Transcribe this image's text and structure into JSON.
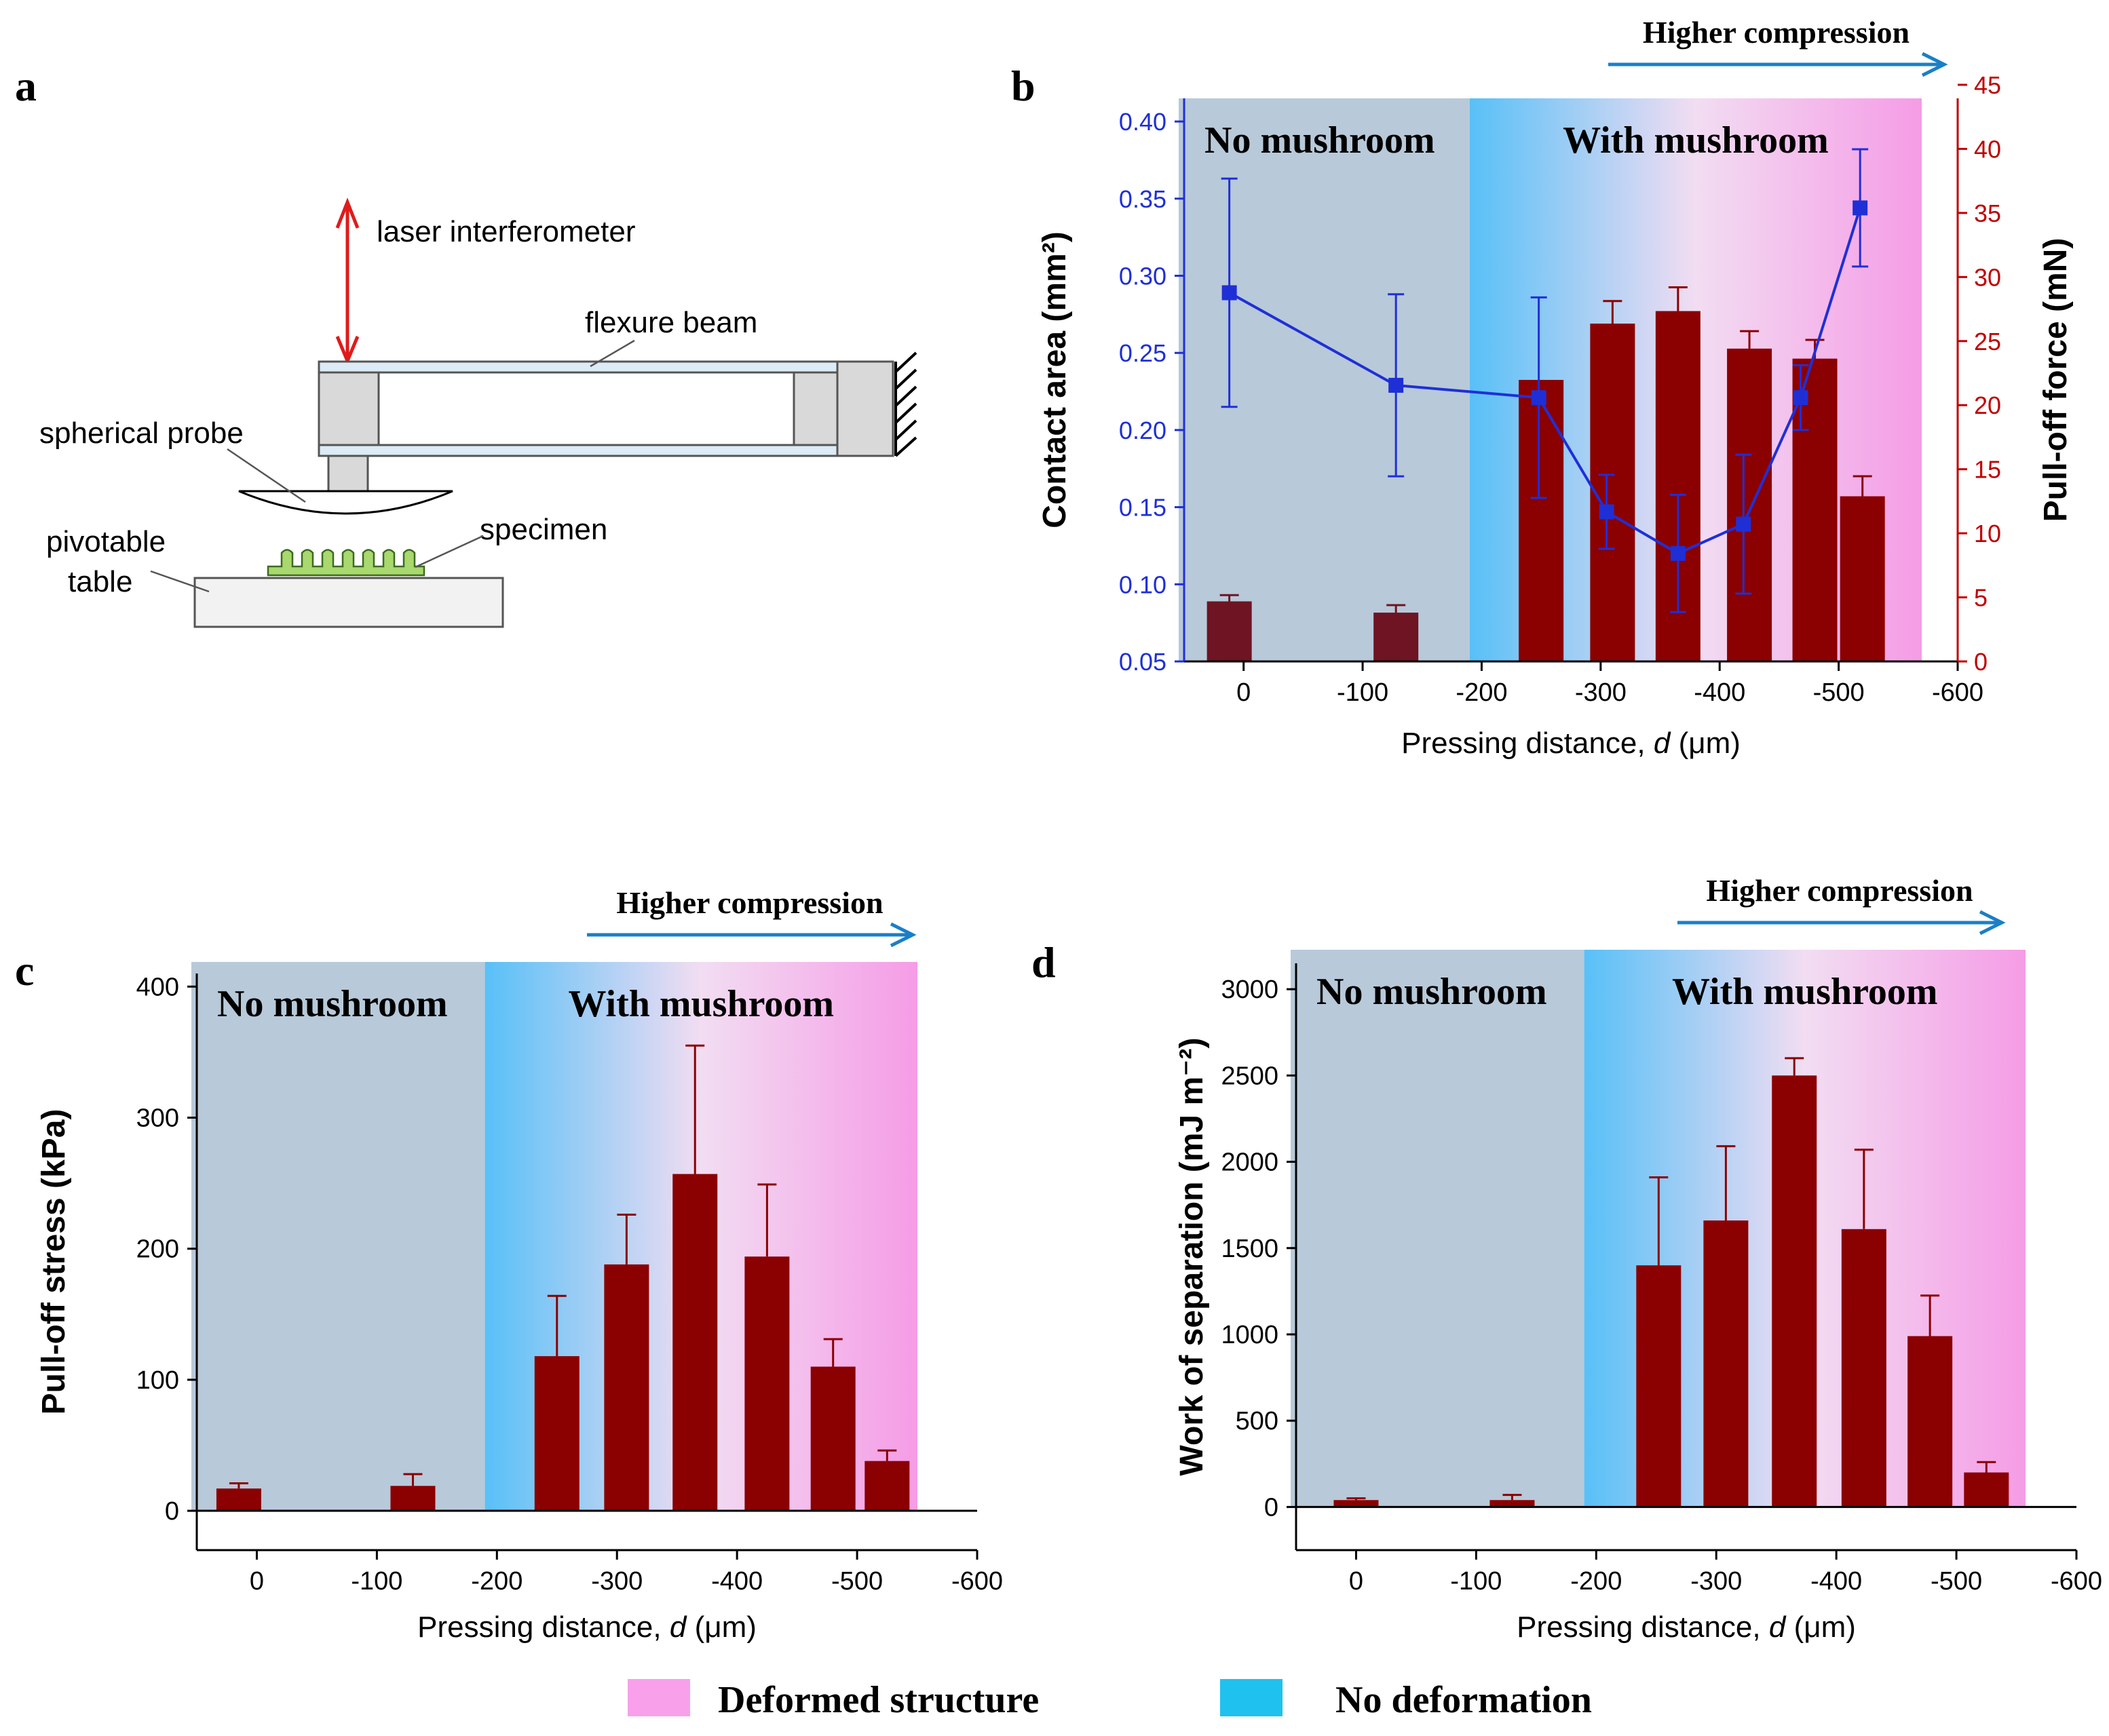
{
  "colors": {
    "bar": "#8b0000",
    "bar_dark": "#6e1423",
    "line": "#1f2fd6",
    "arrow": "#1a7fc8",
    "laser": "#e01b1b",
    "right_axis": "#c00000",
    "grey_region": "#b8c9d9",
    "blue_region": "#58c0f7",
    "pink_region": "#f59ce6",
    "legend_pink": "#f8a0ea",
    "legend_blue": "#1fc1ef",
    "specimen": "#a8d86e"
  },
  "panel_a": {
    "letter": "a",
    "labels": {
      "laser": "laser interferometer",
      "beam": "flexure beam",
      "probe": "spherical probe",
      "specimen": "specimen",
      "table_1": "pivotable",
      "table_2": "table"
    }
  },
  "legend": {
    "deformed": "Deformed structure",
    "no_deformation": "No deformation"
  },
  "chart_data": [
    {
      "panel": "b",
      "type": "bar",
      "title": "",
      "arrow_label": "Higher compression",
      "region_left": "No mushroom",
      "region_right": "With mushroom",
      "region_boundary_x": -190,
      "xlabel_main": "Pressing distance, ",
      "xlabel_italic": "d",
      "xlabel_unit": " (μm)",
      "xlim": [
        50,
        -600
      ],
      "x_ticks": [
        0,
        -100,
        -200,
        -300,
        -400,
        -500,
        -600
      ],
      "x_tick_labels": [
        "0",
        "-100",
        "-200",
        "-300",
        "-400",
        "-500",
        "-600"
      ],
      "ylabel_left": "Contact area (mm²)",
      "ylim_left": [
        0.05,
        0.415
      ],
      "y_ticks_left": [
        0.05,
        0.1,
        0.15,
        0.2,
        0.25,
        0.3,
        0.35,
        0.4
      ],
      "y_tick_labels_left": [
        "0.05",
        "0.10",
        "0.15",
        "0.20",
        "0.25",
        "0.30",
        "0.35",
        "0.40"
      ],
      "ylabel_right": "Pull-off force (mN)",
      "ylim_right": [
        0,
        45
      ],
      "y_ticks_right": [
        0,
        5,
        10,
        15,
        20,
        25,
        30,
        35,
        40,
        45
      ],
      "y_tick_labels_right": [
        "0",
        "5",
        "10",
        "15",
        "20",
        "25",
        "30",
        "35",
        "40",
        "45"
      ],
      "bars": {
        "name": "Pull-off force (mN)",
        "x": [
          12,
          -128,
          -250,
          -310,
          -365,
          -425,
          -480,
          -520
        ],
        "values": [
          4.8,
          3.9,
          22.5,
          27.0,
          28.0,
          25.0,
          24.2,
          13.2
        ],
        "errors": [
          0.5,
          0.6,
          0,
          1.8,
          1.9,
          1.4,
          1.5,
          1.6
        ],
        "dark": [
          true,
          true,
          false,
          false,
          false,
          false,
          false,
          false
        ]
      },
      "line": {
        "name": "Contact area (mm²)",
        "x": [
          12,
          -128,
          -248,
          -305,
          -365,
          -420,
          -468,
          -518
        ],
        "values": [
          0.289,
          0.229,
          0.221,
          0.147,
          0.12,
          0.139,
          0.221,
          0.344
        ],
        "errors": [
          0.074,
          0.059,
          0.065,
          0.024,
          0.038,
          0.045,
          0.021,
          0.038
        ]
      }
    },
    {
      "panel": "c",
      "type": "bar",
      "title": "",
      "arrow_label": "Higher compression",
      "region_left": "No mushroom",
      "region_right": "With mushroom",
      "region_boundary_x": -190,
      "xlabel_main": "Pressing distance, ",
      "xlabel_italic": "d",
      "xlabel_unit": " (μm)",
      "xlim": [
        50,
        -600
      ],
      "x_ticks": [
        0,
        -100,
        -200,
        -300,
        -400,
        -500,
        -600
      ],
      "x_tick_labels": [
        "0",
        "-100",
        "-200",
        "-300",
        "-400",
        "-500",
        "-600"
      ],
      "ylabel": "Pull-off stress (kPa)",
      "ylim": [
        -30,
        410
      ],
      "y_ticks": [
        0,
        100,
        200,
        300,
        400
      ],
      "y_tick_labels": [
        "0",
        "100",
        "200",
        "300",
        "400"
      ],
      "bars": {
        "name": "Pull-off stress (kPa)",
        "x": [
          15,
          -130,
          -250,
          -308,
          -365,
          -425,
          -480,
          -525
        ],
        "values": [
          17,
          19,
          118,
          188,
          257,
          194,
          110,
          38
        ],
        "errors": [
          4,
          9,
          46,
          38,
          98,
          55,
          21,
          8
        ]
      }
    },
    {
      "panel": "d",
      "type": "bar",
      "title": "",
      "arrow_label": "Higher compression",
      "region_left": "No mushroom",
      "region_right": "With mushroom",
      "region_boundary_x": -190,
      "xlabel_main": "Pressing distance, ",
      "xlabel_italic": "d",
      "xlabel_unit": " (μm)",
      "xlim": [
        50,
        -600
      ],
      "x_ticks": [
        0,
        -100,
        -200,
        -300,
        -400,
        -500,
        -600
      ],
      "x_tick_labels": [
        "0",
        "-100",
        "-200",
        "-300",
        "-400",
        "-500",
        "-600"
      ],
      "ylabel": "Work of separation (mJ m⁻²)",
      "ylim": [
        -250,
        3150
      ],
      "y_ticks": [
        0,
        500,
        1000,
        1500,
        2000,
        2500,
        3000
      ],
      "y_tick_labels": [
        "0",
        "500",
        "1000",
        "1500",
        "2000",
        "2500",
        "3000"
      ],
      "bars": {
        "name": "Work of separation (mJ m⁻²)",
        "x": [
          0,
          -130,
          -252,
          -308,
          -365,
          -423,
          -478,
          -525
        ],
        "values": [
          40,
          40,
          1400,
          1660,
          2500,
          1610,
          990,
          200
        ],
        "errors": [
          10,
          30,
          510,
          430,
          100,
          460,
          235,
          60
        ]
      }
    }
  ]
}
